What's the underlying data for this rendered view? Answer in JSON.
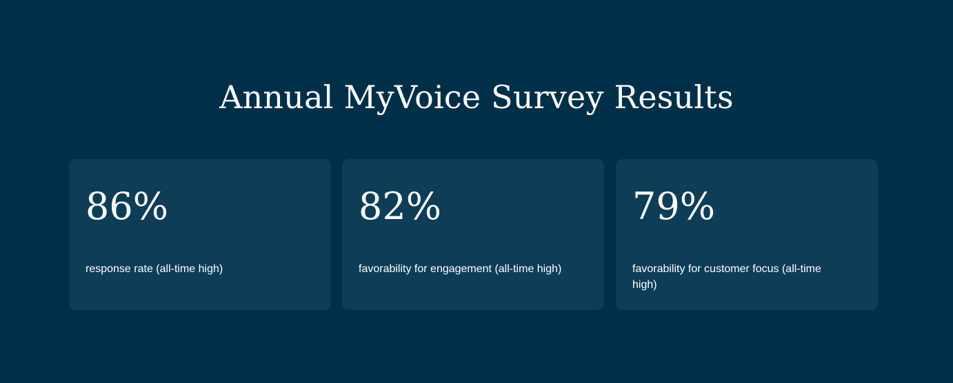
{
  "title": "Annual MyVoice Survey Results",
  "stats": [
    {
      "value": "86%",
      "label": "response rate (all-time high)"
    },
    {
      "value": "82%",
      "label": "favorability for engagement (all-time high)"
    },
    {
      "value": "79%",
      "label": "favorability for customer focus (all-time high)"
    }
  ],
  "colors": {
    "background": "#003049",
    "card": "#0e3d58",
    "text": "#ffffff"
  }
}
